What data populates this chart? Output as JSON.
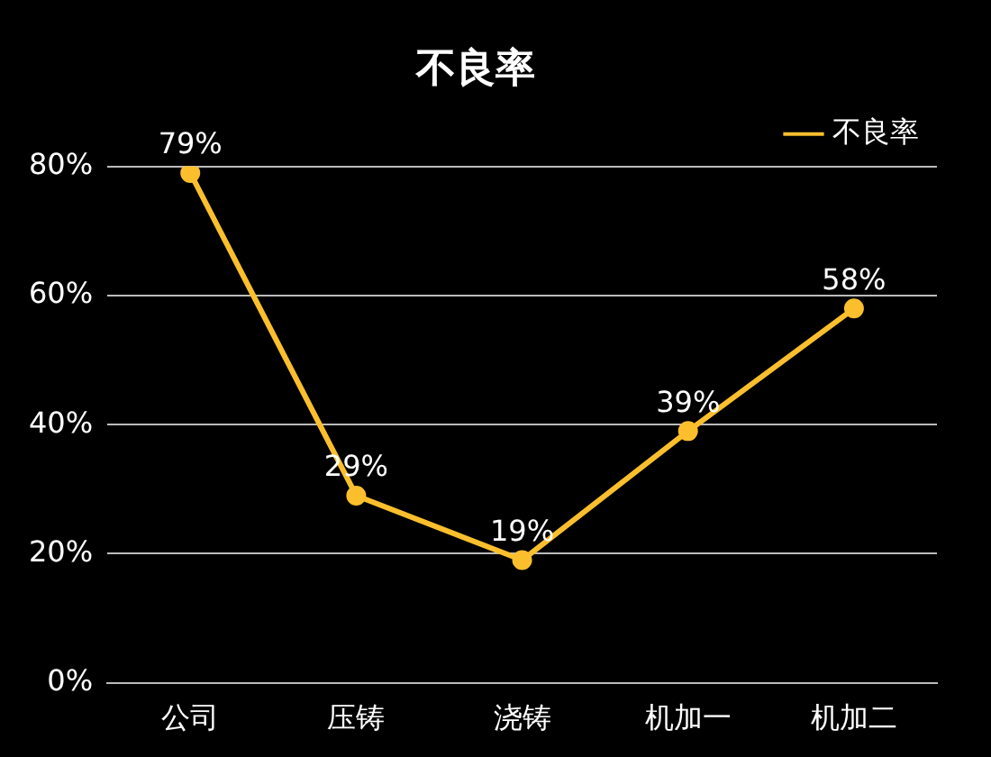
{
  "chart_data": {
    "type": "line",
    "title": "不良率",
    "categories": [
      "公司",
      "压铸",
      "浇铸",
      "机加一",
      "机加二"
    ],
    "series": [
      {
        "name": "不良率",
        "color": "#fbbf2d",
        "values": [
          79,
          29,
          19,
          39,
          58
        ],
        "value_labels": [
          "79%",
          "29%",
          "19%",
          "39%",
          "58%"
        ]
      }
    ],
    "ylim": [
      0,
      80
    ],
    "yticks": [
      {
        "value": 0,
        "label": "0%"
      },
      {
        "value": 20,
        "label": "20%"
      },
      {
        "value": 40,
        "label": "40%"
      },
      {
        "value": 60,
        "label": "60%"
      },
      {
        "value": 80,
        "label": "80%"
      }
    ],
    "grid": "y",
    "legend": "top right",
    "marker": "circle",
    "line_style": "solid"
  }
}
